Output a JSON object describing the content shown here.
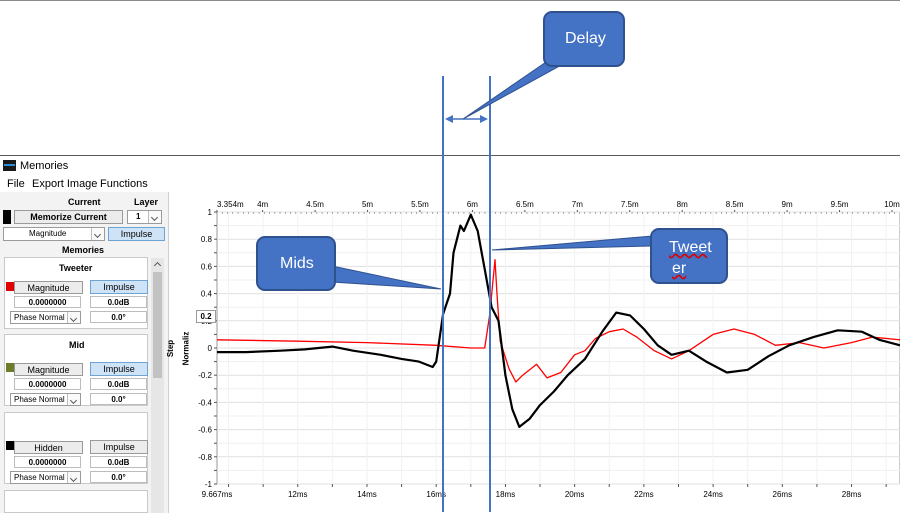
{
  "window": {
    "title": "Memories"
  },
  "menu": [
    "File",
    "Export Image",
    "Functions"
  ],
  "sidebar": {
    "current_header": "Current",
    "layer_header": "Layer",
    "memorize_label": "Memorize Current",
    "layer_value": "1",
    "magnitude_label": "Magnitude",
    "impulse_label": "Impulse",
    "memories_header": "Memories",
    "memories": [
      {
        "name": "Tweeter",
        "color": "#e00000",
        "mode": "Magnitude",
        "impulse": "Impulse",
        "value": "0.0000000",
        "db": "0.0dB",
        "phase": "Phase Normal",
        "deg": "0.0°"
      },
      {
        "name": "Mid",
        "color": "#6b7d2a",
        "mode": "Magnitude",
        "impulse": "Impulse",
        "value": "0.0000000",
        "db": "0.0dB",
        "phase": "Phase Normal",
        "deg": "0.0°"
      },
      {
        "name": "",
        "color": "#000000",
        "mode": "Hidden",
        "impulse": "Impulse",
        "value": "0.0000000",
        "db": "0.0dB",
        "phase": "Phase Normal",
        "deg": "0.0°"
      }
    ]
  },
  "plot": {
    "y_axis_label": "Step",
    "y_axis_label2": "Normaliz",
    "y_scale_box": "0.2"
  },
  "annotations": {
    "delay": "Delay",
    "mids": "Mids",
    "tweeter_line1": "Twee",
    "tweeter_line2": "t",
    "tweeter_line3": "er"
  },
  "colors": {
    "accent_blue": "#4472c4",
    "tweeter": "#ff0000",
    "mid": "#000000"
  },
  "chart_data": {
    "type": "line",
    "top_axis_ticks": [
      "3.354m",
      "4m",
      "4.5m",
      "5m",
      "5.5m",
      "6m",
      "6.5m",
      "7m",
      "7.5m",
      "8m",
      "8.5m",
      "9m",
      "9.5m",
      "10m"
    ],
    "x_tick_labels": [
      "9.667ms",
      "12ms",
      "14ms",
      "16ms",
      "18ms",
      "20ms",
      "22ms",
      "24ms",
      "26ms",
      "28ms"
    ],
    "y_tick_labels": [
      "1",
      "0.8",
      "0.6",
      "0.4",
      "0.2",
      "0",
      "-0.2",
      "-0.4",
      "-0.6",
      "-0.8",
      "-1"
    ],
    "ylim": [
      -1,
      1
    ],
    "xlim": [
      9.667,
      29.4
    ],
    "series": [
      {
        "name": "Tweeter",
        "color": "#ff0000",
        "points": [
          [
            9.667,
            0.06
          ],
          [
            12,
            0.05
          ],
          [
            14,
            0.04
          ],
          [
            16,
            0.02
          ],
          [
            17.0,
            0.0
          ],
          [
            17.4,
            0.0
          ],
          [
            17.55,
            0.25
          ],
          [
            17.7,
            0.65
          ],
          [
            17.75,
            0.42
          ],
          [
            17.85,
            0.05
          ],
          [
            18.1,
            -0.15
          ],
          [
            18.3,
            -0.25
          ],
          [
            18.5,
            -0.2
          ],
          [
            18.9,
            -0.12
          ],
          [
            19.2,
            -0.22
          ],
          [
            19.6,
            -0.18
          ],
          [
            20.0,
            -0.05
          ],
          [
            20.3,
            -0.02
          ],
          [
            20.6,
            0.07
          ],
          [
            21.0,
            0.12
          ],
          [
            21.4,
            0.14
          ],
          [
            21.8,
            0.08
          ],
          [
            22.3,
            -0.02
          ],
          [
            22.8,
            -0.08
          ],
          [
            23.3,
            -0.02
          ],
          [
            24.0,
            0.1
          ],
          [
            24.6,
            0.14
          ],
          [
            25.2,
            0.1
          ],
          [
            25.8,
            0.02
          ],
          [
            26.5,
            0.04
          ],
          [
            27.2,
            0.0
          ],
          [
            28.0,
            0.04
          ],
          [
            28.6,
            0.08
          ],
          [
            29.4,
            0.06
          ]
        ]
      },
      {
        "name": "Mid",
        "color": "#000000",
        "points": [
          [
            9.667,
            -0.03
          ],
          [
            10.5,
            -0.03
          ],
          [
            11.5,
            -0.02
          ],
          [
            12.2,
            -0.01
          ],
          [
            13.0,
            0.01
          ],
          [
            13.6,
            -0.02
          ],
          [
            14.4,
            -0.05
          ],
          [
            15.0,
            -0.08
          ],
          [
            15.5,
            -0.1
          ],
          [
            15.9,
            -0.14
          ],
          [
            16.0,
            -0.1
          ],
          [
            16.2,
            0.25
          ],
          [
            16.4,
            0.4
          ],
          [
            16.5,
            0.7
          ],
          [
            16.7,
            0.9
          ],
          [
            16.8,
            0.86
          ],
          [
            17.0,
            0.98
          ],
          [
            17.2,
            0.86
          ],
          [
            17.4,
            0.58
          ],
          [
            17.6,
            0.3
          ],
          [
            17.8,
            0.2
          ],
          [
            18.0,
            -0.2
          ],
          [
            18.2,
            -0.45
          ],
          [
            18.4,
            -0.58
          ],
          [
            18.7,
            -0.52
          ],
          [
            19.0,
            -0.42
          ],
          [
            19.4,
            -0.32
          ],
          [
            19.8,
            -0.2
          ],
          [
            20.3,
            -0.08
          ],
          [
            20.8,
            0.12
          ],
          [
            21.2,
            0.26
          ],
          [
            21.6,
            0.24
          ],
          [
            22.0,
            0.14
          ],
          [
            22.4,
            0.02
          ],
          [
            22.8,
            -0.05
          ],
          [
            23.3,
            -0.02
          ],
          [
            23.8,
            -0.1
          ],
          [
            24.4,
            -0.18
          ],
          [
            25.0,
            -0.16
          ],
          [
            25.6,
            -0.06
          ],
          [
            26.2,
            0.02
          ],
          [
            26.9,
            0.08
          ],
          [
            27.6,
            0.13
          ],
          [
            28.3,
            0.12
          ],
          [
            28.8,
            0.06
          ],
          [
            29.4,
            0.02
          ]
        ]
      }
    ]
  }
}
